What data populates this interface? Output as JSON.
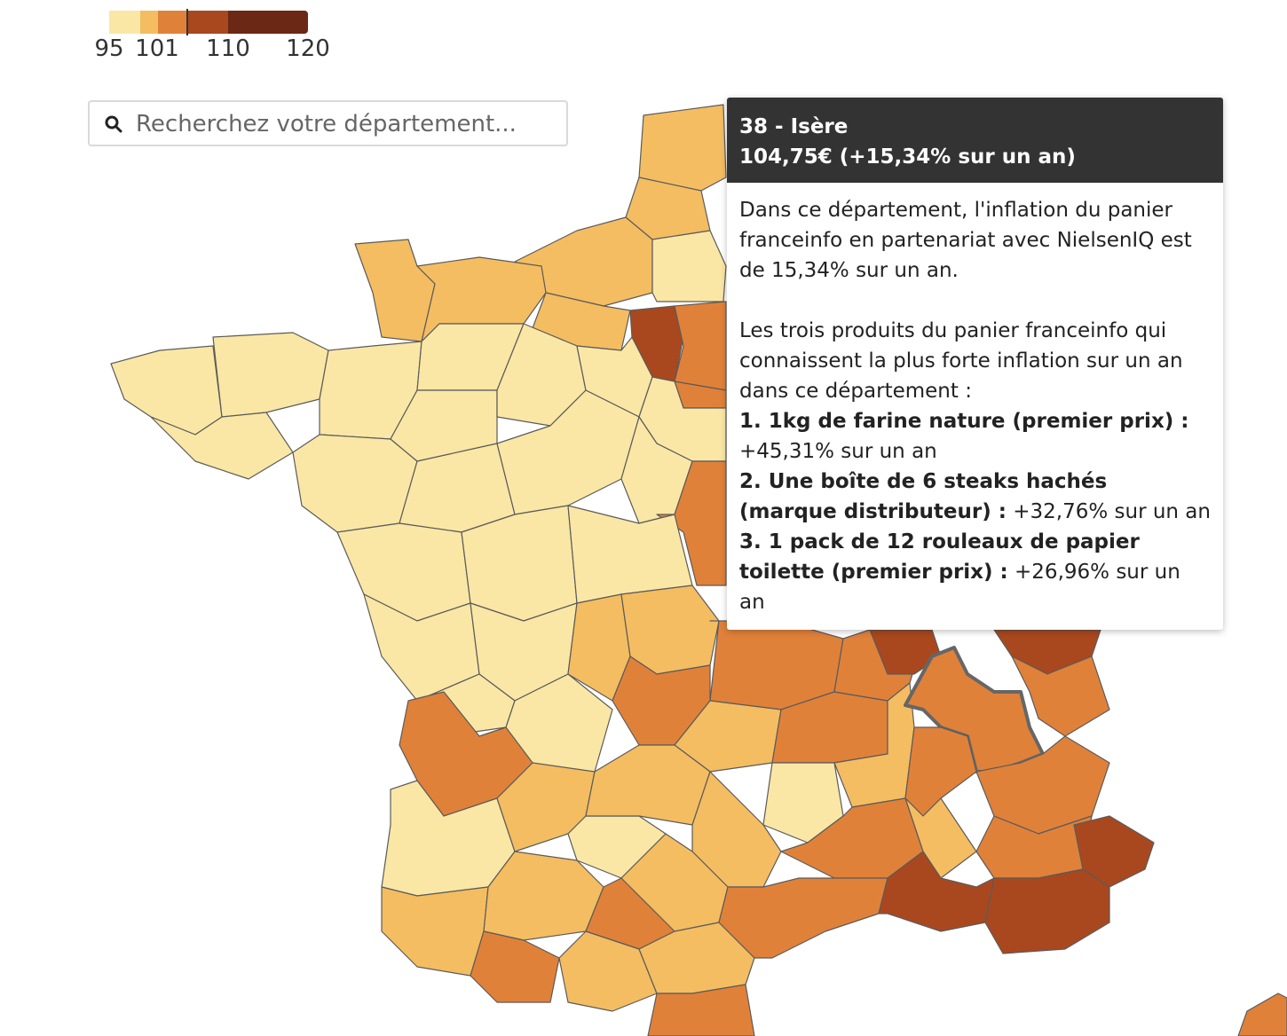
{
  "legend": {
    "ticks": [
      "95",
      "101",
      "110",
      "120"
    ],
    "colors": [
      "#fae7a5",
      "#f4bd62",
      "#e0813a",
      "#a9481e",
      "#6b2814"
    ]
  },
  "search": {
    "placeholder": "Recherchez votre département...",
    "icon": "search-icon"
  },
  "tooltip": {
    "title": "38 - Isère",
    "subtitle": "104,75€ (+15,34% sur un an)",
    "intro": "Dans ce département, l'inflation du panier franceinfo en partenariat avec NielsenIQ est de 15,34% sur un an.",
    "lead": "Les trois produits du panier franceinfo qui connaissent la plus forte inflation sur un an dans ce département :",
    "items": [
      {
        "label": "1. 1kg de farine nature (premier prix) :",
        "value": "+45,31% sur un an"
      },
      {
        "label": "2. Une boîte de 6 steaks hachés (marque distributeur) :",
        "value": "+32,76% sur un an"
      },
      {
        "label": "3. 1 pack de 12 rouleaux de papier toilette (premier prix) :",
        "value": "+26,96% sur un an"
      }
    ]
  },
  "map": {
    "selected": "38 - Isère",
    "class_colors": {
      "c1": "#fae7a5",
      "c2": "#f4bd62",
      "c3": "#e0813a",
      "c4": "#a9481e",
      "c5": "#6b2814"
    }
  }
}
